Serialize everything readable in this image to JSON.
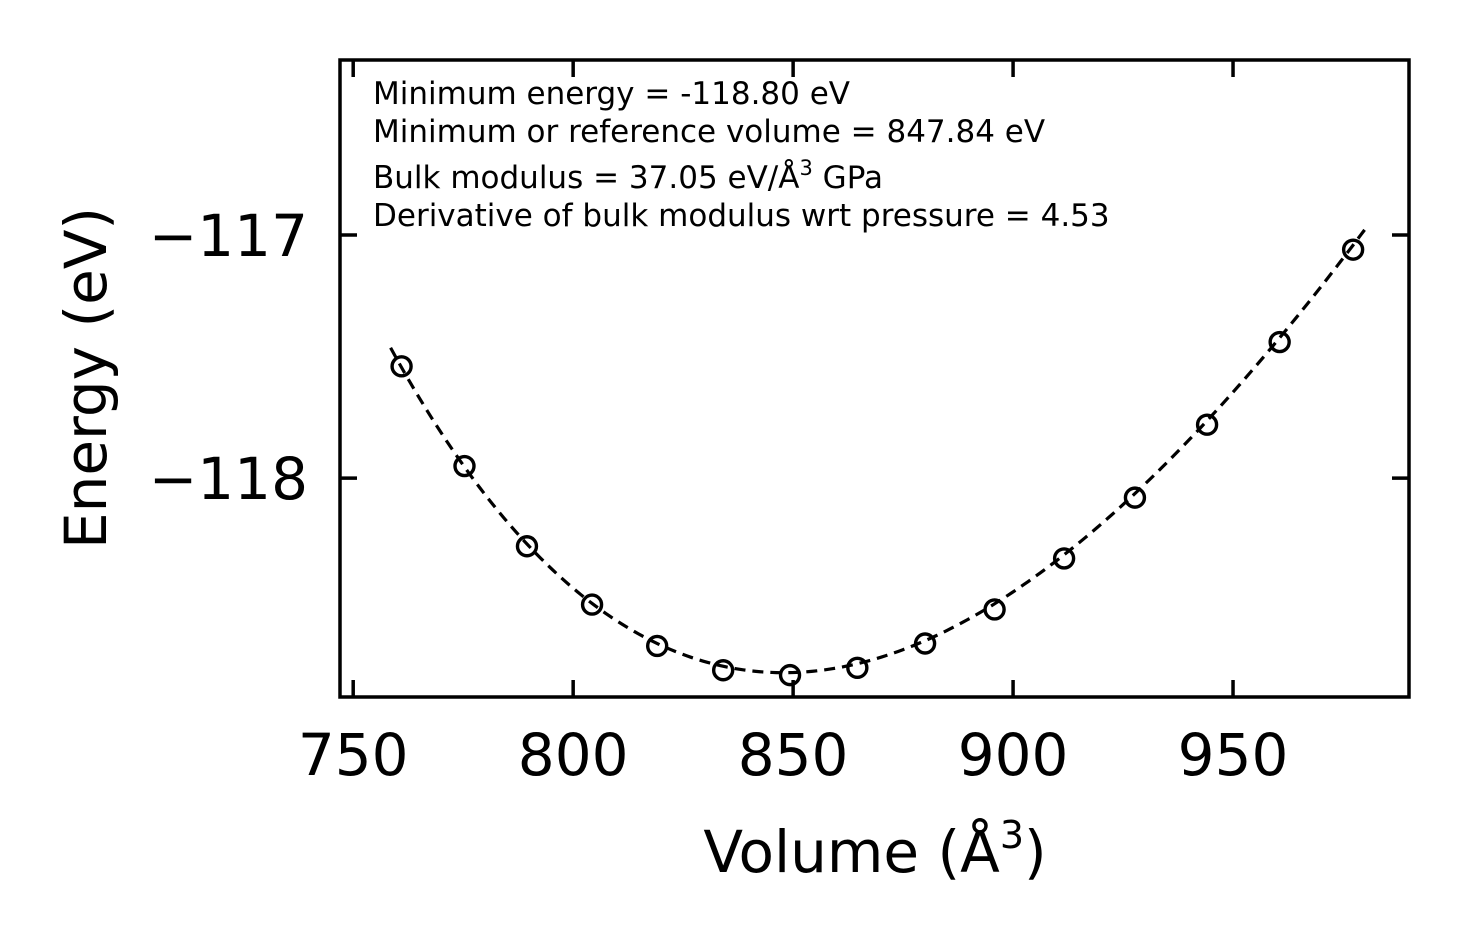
{
  "chart_data": {
    "type": "scatter",
    "xlabel_text": "Volume (Å",
    "xlabel_sup": "3",
    "xlabel_close": ")",
    "ylabel": "Energy (eV)",
    "xlim": [
      747,
      990
    ],
    "ylim": [
      -118.9,
      -116.28
    ],
    "x_ticks": [
      750,
      800,
      850,
      900,
      950
    ],
    "x_tick_labels": [
      "750",
      "800",
      "850",
      "900",
      "950"
    ],
    "y_ticks": [
      -117,
      -118
    ],
    "y_tick_labels": [
      "−117",
      "−118"
    ],
    "annotations": {
      "line1": "Minimum energy = -118.80 eV",
      "line2": "Minimum or reference volume = 847.84 eV",
      "line3_pre": "Bulk modulus = 37.05 eV/Å",
      "line3_sup": "3",
      "line3_post": " GPa",
      "line4": "Derivative of bulk modulus wrt pressure = 4.53"
    },
    "series": [
      {
        "name": "data",
        "marker": "open-circle",
        "x": [
          761,
          775.3,
          789.5,
          804.3,
          819.1,
          834.1,
          849.3,
          864.6,
          880,
          895.8,
          911.6,
          927.7,
          944.1,
          960.6,
          977.3
        ],
        "y": [
          -117.54,
          -117.95,
          -118.28,
          -118.52,
          -118.69,
          -118.79,
          -118.81,
          -118.78,
          -118.68,
          -118.54,
          -118.33,
          -118.08,
          -117.78,
          -117.44,
          -117.06
        ]
      },
      {
        "name": "fit",
        "style": "dashed",
        "fit": {
          "type": "birch-murnaghan",
          "E0": -118.8,
          "V0": 847.84,
          "B0_eV_per_A3": 37.05,
          "B0_prime": 4.53,
          "x_range": [
            758.5,
            980
          ]
        }
      }
    ]
  }
}
